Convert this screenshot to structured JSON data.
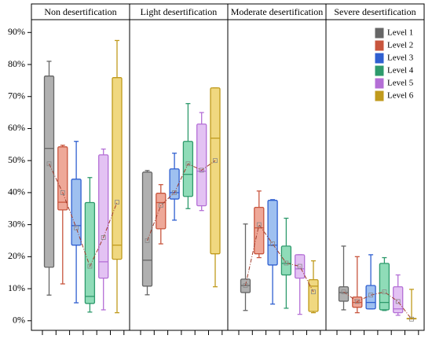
{
  "chart_data": {
    "type": "box",
    "panels": [
      "Non desertification",
      "Light desertification",
      "Moderate desertification",
      "Severe desertification"
    ],
    "ylim": [
      -3,
      94
    ],
    "yticks": [
      {
        "value": 0,
        "label": "0%"
      },
      {
        "value": 10,
        "label": "10%"
      },
      {
        "value": 20,
        "label": "20%"
      },
      {
        "value": 30,
        "label": "30%"
      },
      {
        "value": 40,
        "label": "40%"
      },
      {
        "value": 50,
        "label": "50%"
      },
      {
        "value": 60,
        "label": "60%"
      },
      {
        "value": 70,
        "label": "70%"
      },
      {
        "value": 80,
        "label": "80%"
      },
      {
        "value": 90,
        "label": "90%"
      }
    ],
    "legend": "upper right",
    "mean_line_color": "#a03a2a",
    "series": [
      {
        "name": "Level 1",
        "color": "#666666",
        "fill": "#b0b0b0",
        "min": [
          8,
          8.1,
          3.2,
          3.4
        ],
        "q1": [
          16.7,
          10.8,
          8.8,
          6.1
        ],
        "median": [
          53.8,
          18.9,
          11,
          8.8
        ],
        "q3": [
          76.4,
          46.4,
          13,
          10.6
        ],
        "max": [
          81,
          46.9,
          30.2,
          23.3
        ],
        "mean": [
          49,
          25,
          11,
          9
        ]
      },
      {
        "name": "Level 2",
        "color": "#c8553d",
        "fill": "#eea898",
        "min": [
          11.5,
          24,
          19.7,
          2.5
        ],
        "q1": [
          34.6,
          28.7,
          20.9,
          4.2
        ],
        "median": [
          37,
          36.9,
          29,
          5.7
        ],
        "q3": [
          54.3,
          39.8,
          35.4,
          7.4
        ],
        "max": [
          54.8,
          42.5,
          40.5,
          20
        ],
        "mean": [
          40,
          36,
          30,
          6
        ]
      },
      {
        "name": "Level 3",
        "color": "#2f5fd0",
        "fill": "#9ec0f0",
        "min": [
          5.6,
          31.4,
          5.2,
          3.7
        ],
        "q1": [
          23.6,
          38,
          17.4,
          3.7
        ],
        "median": [
          29.7,
          40,
          23.6,
          5.7
        ],
        "q3": [
          44.2,
          47.4,
          37.6,
          11
        ],
        "max": [
          56,
          52.3,
          37.8,
          20.6
        ],
        "mean": [
          29,
          40,
          24,
          8
        ]
      },
      {
        "name": "Level 4",
        "color": "#2e9a6c",
        "fill": "#8fdcb8",
        "min": [
          2.7,
          35,
          3.9,
          3.2
        ],
        "q1": [
          5.4,
          38.8,
          14.3,
          3.4
        ],
        "median": [
          7.6,
          45.7,
          17.9,
          5.7
        ],
        "q3": [
          36.9,
          56,
          23.3,
          17.9
        ],
        "max": [
          44.7,
          67.8,
          32,
          19.7
        ],
        "mean": [
          17,
          49,
          18,
          9
        ]
      },
      {
        "name": "Level 5",
        "color": "#b46fd6",
        "fill": "#e3c2f3",
        "min": [
          3.4,
          34.4,
          2,
          1.7
        ],
        "q1": [
          13.3,
          35.9,
          13.3,
          2.5
        ],
        "median": [
          18.4,
          46.7,
          16.2,
          3.7
        ],
        "q3": [
          51.8,
          61.4,
          20.6,
          10.6
        ],
        "max": [
          53.6,
          65,
          20.6,
          14.3
        ],
        "mean": [
          26,
          47,
          17,
          6
        ]
      },
      {
        "name": "Level 6",
        "color": "#c09a1c",
        "fill": "#f0d880",
        "min": [
          2.5,
          10.6,
          2.5,
          0.7
        ],
        "q1": [
          19.2,
          20.9,
          2.9,
          0.7
        ],
        "median": [
          23.6,
          57,
          10.8,
          0.7
        ],
        "q3": [
          75.9,
          72.7,
          12.8,
          0.7
        ],
        "max": [
          87.5,
          72.7,
          18.7,
          9.8
        ],
        "mean": [
          37,
          50,
          9,
          0.5
        ]
      }
    ]
  }
}
